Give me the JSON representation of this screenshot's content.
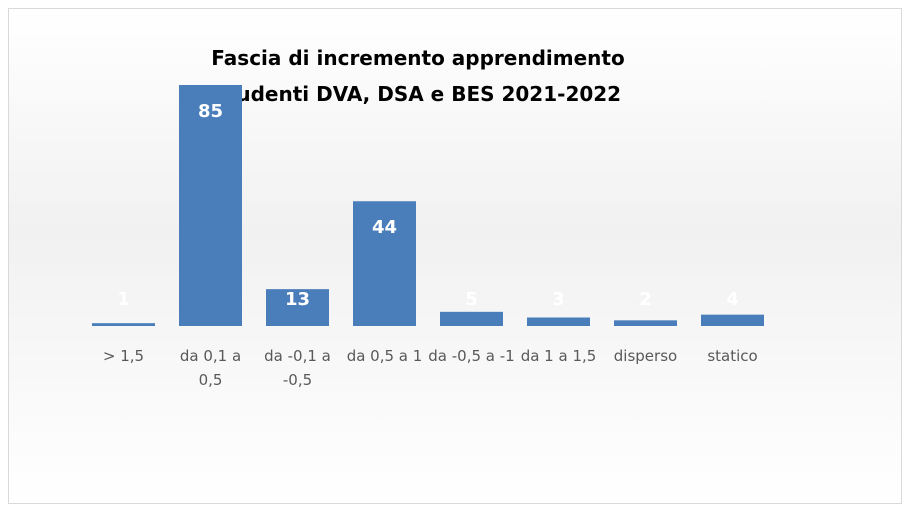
{
  "chart_data": {
    "type": "bar",
    "title": "Fascia di incremento apprendimento studenti DVA, DSA e BES 2021-2022",
    "categories": [
      "> 1,5",
      "da 0,1 a 0,5",
      "da -0,1 a -0,5",
      "da 0,5 a 1",
      "da -0,5 a -1",
      "da 1 a 1,5",
      "disperso",
      "statico"
    ],
    "values": [
      1,
      85,
      13,
      44,
      5,
      3,
      2,
      4
    ],
    "color": "#4a7ebb"
  }
}
